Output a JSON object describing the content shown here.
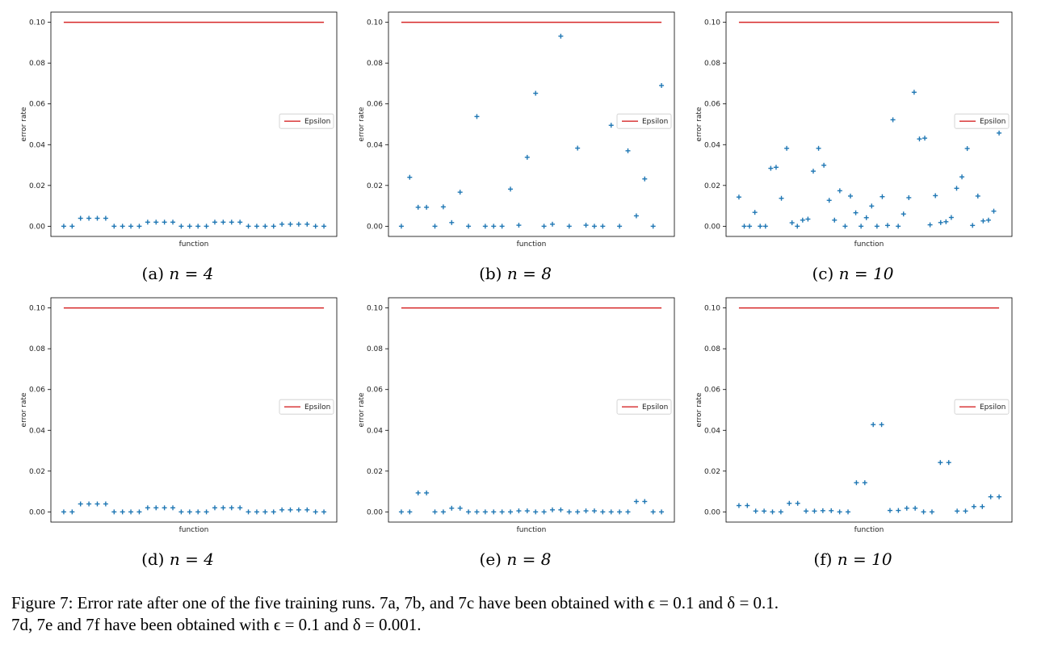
{
  "chart_data": [
    {
      "type": "scatter",
      "subfigure": "(a)",
      "caption": "(a) n = 4",
      "xlabel": "function",
      "ylabel": "error rate",
      "ylim": [
        -0.005,
        0.105
      ],
      "yticks": [
        "0.00",
        "0.02",
        "0.04",
        "0.06",
        "0.08",
        "0.10"
      ],
      "legend": {
        "label": "Epsilon",
        "placement": "center-right"
      },
      "epsilon": 0.1,
      "values": [
        0,
        0,
        0.0039,
        0.0039,
        0.0039,
        0.0039,
        0,
        0,
        0,
        0,
        0.002,
        0.002,
        0.002,
        0.002,
        0,
        0,
        0,
        0,
        0.002,
        0.002,
        0.002,
        0.002,
        0,
        0,
        0,
        0,
        0.001,
        0.001,
        0.001,
        0.001,
        0,
        0
      ]
    },
    {
      "type": "scatter",
      "subfigure": "(b)",
      "caption": "(b) n = 8",
      "xlabel": "function",
      "ylabel": "error rate",
      "ylim": [
        -0.005,
        0.105
      ],
      "yticks": [
        "0.00",
        "0.02",
        "0.04",
        "0.06",
        "0.08",
        "0.10"
      ],
      "legend": {
        "label": "Epsilon",
        "placement": "center-right"
      },
      "epsilon": 0.1,
      "values": [
        0,
        0.024,
        0.0093,
        0.0093,
        0,
        0.0095,
        0.0018,
        0.0167,
        0,
        0.0538,
        0,
        0,
        0,
        0.0182,
        0.0005,
        0.0338,
        0.0652,
        0,
        0.001,
        0.0932,
        0,
        0.0383,
        0.0005,
        0,
        0,
        0.0495,
        0,
        0.037,
        0.0051,
        0.0232,
        0,
        0.069
      ]
    },
    {
      "type": "scatter",
      "subfigure": "(c)",
      "caption": "(c) n = 10",
      "xlabel": "function",
      "ylabel": "error rate",
      "ylim": [
        -0.005,
        0.105
      ],
      "yticks": [
        "0.00",
        "0.02",
        "0.04",
        "0.06",
        "0.08",
        "0.10"
      ],
      "legend": {
        "label": "Epsilon",
        "placement": "center-right"
      },
      "epsilon": 0.1,
      "values": [
        0.0143,
        0,
        0,
        0.0068,
        0,
        0,
        0.0284,
        0.0289,
        0.0137,
        0.0382,
        0.0017,
        0,
        0.003,
        0.0035,
        0.027,
        0.0382,
        0.0299,
        0.0127,
        0.003,
        0.0174,
        0,
        0.0148,
        0.0066,
        0,
        0.0042,
        0.0099,
        0,
        0.0145,
        0.0004,
        0.0522,
        0,
        0.006,
        0.014,
        0.0657,
        0.0428,
        0.0432,
        0.0007,
        0.015,
        0.0018,
        0.0022,
        0.0043,
        0.0186,
        0.0242,
        0.0381,
        0.0004,
        0.0148,
        0.0026,
        0.003,
        0.0074,
        0.0457
      ]
    },
    {
      "type": "scatter",
      "subfigure": "(d)",
      "caption": "(d) n = 4",
      "xlabel": "function",
      "ylabel": "error rate",
      "ylim": [
        -0.005,
        0.105
      ],
      "yticks": [
        "0.00",
        "0.02",
        "0.04",
        "0.06",
        "0.08",
        "0.10"
      ],
      "legend": {
        "label": "Epsilon",
        "placement": "center-right"
      },
      "epsilon": 0.1,
      "values": [
        0,
        0,
        0.0039,
        0.0039,
        0.0039,
        0.0039,
        0,
        0,
        0,
        0,
        0.002,
        0.002,
        0.002,
        0.002,
        0,
        0,
        0,
        0,
        0.002,
        0.002,
        0.002,
        0.002,
        0,
        0,
        0,
        0,
        0.001,
        0.001,
        0.001,
        0.001,
        0,
        0
      ]
    },
    {
      "type": "scatter",
      "subfigure": "(e)",
      "caption": "(e) n = 8",
      "xlabel": "function",
      "ylabel": "error rate",
      "ylim": [
        -0.005,
        0.105
      ],
      "yticks": [
        "0.00",
        "0.02",
        "0.04",
        "0.06",
        "0.08",
        "0.10"
      ],
      "legend": {
        "label": "Epsilon",
        "placement": "center-right"
      },
      "epsilon": 0.1,
      "values": [
        0,
        0,
        0.0093,
        0.0093,
        0,
        0,
        0.0018,
        0.0018,
        0,
        0,
        0,
        0,
        0,
        0,
        0.0005,
        0.0005,
        0,
        0,
        0.001,
        0.001,
        0,
        0,
        0.0005,
        0.0005,
        0,
        0,
        0,
        0,
        0.0051,
        0.0051,
        0,
        0
      ]
    },
    {
      "type": "scatter",
      "subfigure": "(f)",
      "caption": "(f) n = 10",
      "xlabel": "function",
      "ylabel": "error rate",
      "ylim": [
        -0.005,
        0.105
      ],
      "yticks": [
        "0.00",
        "0.02",
        "0.04",
        "0.06",
        "0.08",
        "0.10"
      ],
      "legend": {
        "label": "Epsilon",
        "placement": "center-right"
      },
      "epsilon": 0.1,
      "values": [
        0.0031,
        0.0031,
        0.0004,
        0.0004,
        0,
        0,
        0.0042,
        0.0042,
        0.0004,
        0.0004,
        0.0006,
        0.0006,
        0,
        0,
        0.0143,
        0.0143,
        0.0428,
        0.0428,
        0.0007,
        0.0007,
        0.0018,
        0.0018,
        0,
        0,
        0.0242,
        0.0242,
        0.0004,
        0.0004,
        0.0026,
        0.0026,
        0.0074,
        0.0074
      ]
    }
  ],
  "captions": {
    "a": {
      "label": "(a)",
      "math": "n = 4"
    },
    "b": {
      "label": "(b)",
      "math": "n = 8"
    },
    "c": {
      "label": "(c)",
      "math": "n = 10"
    },
    "d": {
      "label": "(d)",
      "math": "n = 4"
    },
    "e": {
      "label": "(e)",
      "math": "n = 8"
    },
    "f": {
      "label": "(f)",
      "math": "n = 10"
    }
  },
  "figure_caption": {
    "line1": "Figure 7: Error rate after one of the five training runs. 7a, 7b, and 7c have been obtained with ϵ = 0.1 and δ = 0.1.",
    "line2": "7d, 7e and 7f have been obtained with ϵ = 0.1 and δ = 0.001."
  },
  "colors": {
    "series": "#1f77b4",
    "epsilon": "#d62728",
    "axes": "#000000"
  }
}
